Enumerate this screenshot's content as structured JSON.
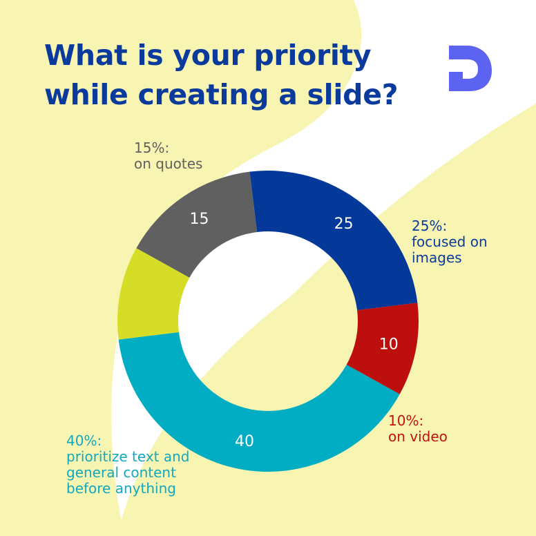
{
  "title": {
    "line1": "What is your priority",
    "line2": "while creating a slide?"
  },
  "logo": {
    "icon": "brand-d-logo-icon",
    "color": "#5b63f0"
  },
  "background": {
    "accent": "#f8f5b3"
  },
  "chart_data": {
    "type": "pie",
    "donut": true,
    "legend": "none",
    "slices": [
      {
        "value": 15,
        "label": "15",
        "color": "#606060"
      },
      {
        "value": 25,
        "label": "25",
        "color": "#04399a"
      },
      {
        "value": 10,
        "label": "10",
        "color": "#bd0f0d"
      },
      {
        "value": 40,
        "label": "40",
        "color": "#00adc2"
      },
      {
        "value": 10,
        "label": "",
        "color": "#d6dd26"
      }
    ],
    "annotations": [
      {
        "lines": [
          "15%:",
          "on quotes"
        ],
        "color": "#606060"
      },
      {
        "lines": [
          "25%:",
          "focused on",
          "images"
        ],
        "color": "#0a3a9c"
      },
      {
        "lines": [
          "10%:",
          "on video"
        ],
        "color": "#c0120f"
      },
      {
        "lines": [
          "40%:",
          "prioritize text and",
          "general content",
          "before anything"
        ],
        "color": "#12a8bd"
      }
    ]
  }
}
